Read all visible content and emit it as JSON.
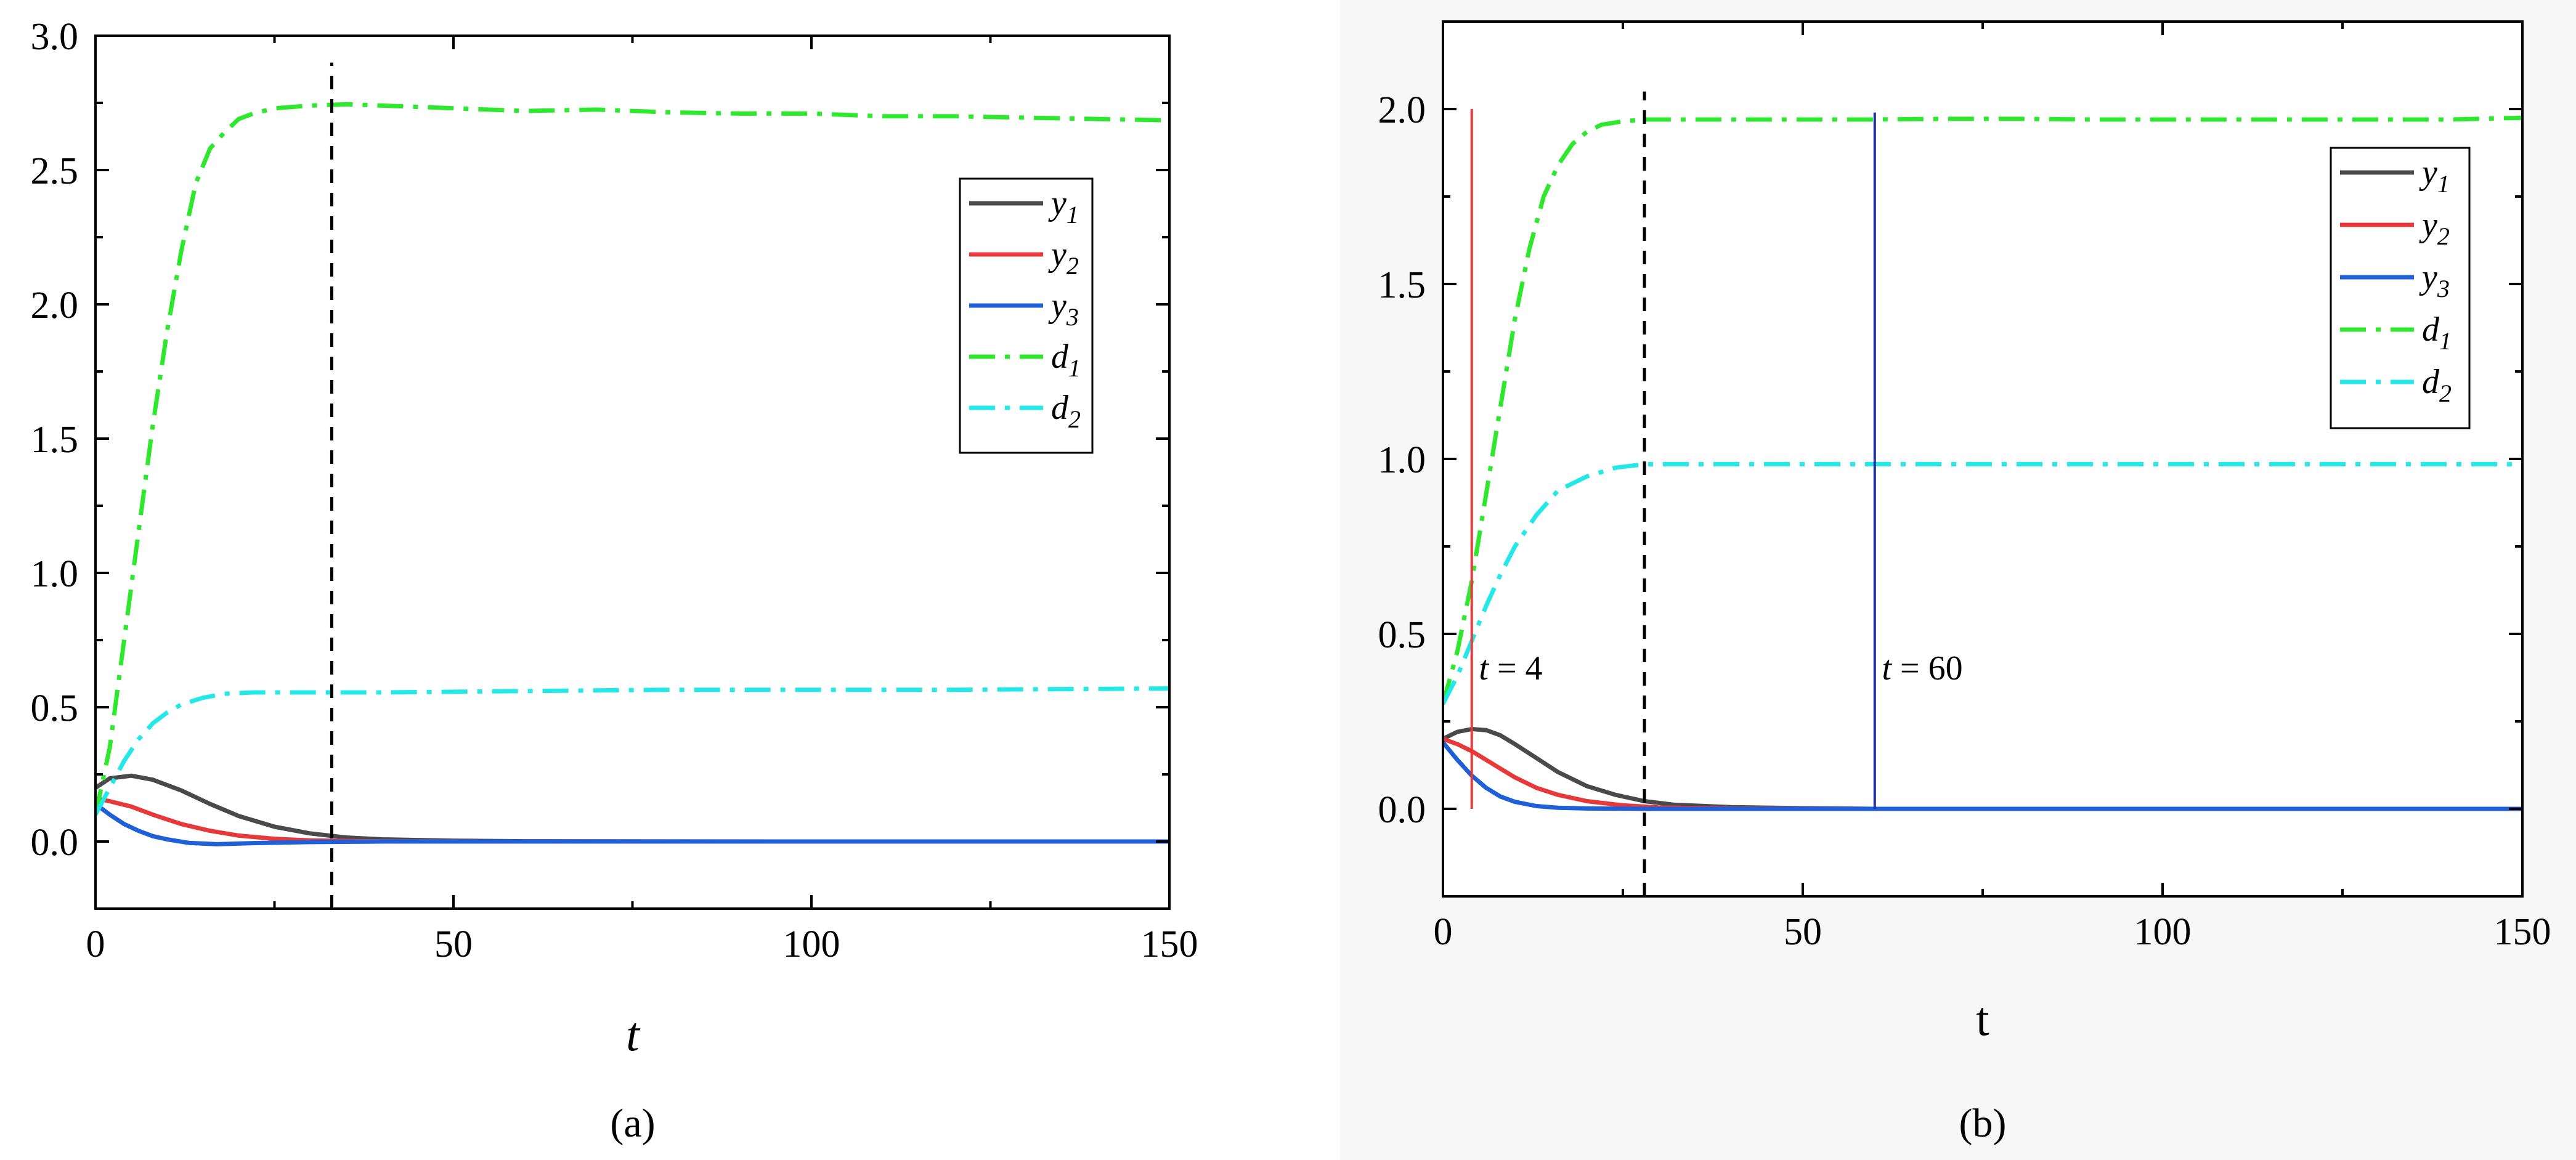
{
  "chart_data": [
    {
      "type": "line",
      "panel_label": "(a)",
      "xlabel": "t",
      "ylabel": "",
      "xlim": [
        0,
        150
      ],
      "ylim": [
        -0.25,
        3.0
      ],
      "xticks": [
        0,
        50,
        100,
        150
      ],
      "xtick_labels": [
        "0",
        "50",
        "100",
        "150"
      ],
      "yticks": [
        0.0,
        0.5,
        1.0,
        1.5,
        2.0,
        2.5,
        3.0
      ],
      "ytick_labels": [
        "0.0",
        "0.5",
        "1.0",
        "1.5",
        "2.0",
        "2.5",
        "3.0"
      ],
      "legend": [
        "y1",
        "y2",
        "y3",
        "d1",
        "d2"
      ],
      "legend_position": "top-right",
      "series": [
        {
          "name": "y1",
          "color": "#4a4a4a",
          "style": "solid",
          "x": [
            0,
            2,
            5,
            8,
            12,
            16,
            20,
            25,
            30,
            35,
            40,
            50,
            60,
            100,
            150
          ],
          "y": [
            0.2,
            0.235,
            0.245,
            0.23,
            0.19,
            0.14,
            0.095,
            0.055,
            0.03,
            0.015,
            0.008,
            0.003,
            0.001,
            0.0,
            0.0
          ]
        },
        {
          "name": "y2",
          "color": "#e8393a",
          "style": "solid",
          "x": [
            0,
            2,
            5,
            8,
            12,
            16,
            20,
            25,
            30,
            40,
            60,
            100,
            150
          ],
          "y": [
            0.16,
            0.15,
            0.13,
            0.1,
            0.065,
            0.04,
            0.022,
            0.01,
            0.004,
            0.001,
            0.0,
            0.0,
            0.0
          ]
        },
        {
          "name": "y3",
          "color": "#1f5fd8",
          "style": "solid",
          "x": [
            0,
            2,
            4,
            6,
            8,
            10,
            13,
            17,
            22,
            30,
            40,
            60,
            100,
            150
          ],
          "y": [
            0.14,
            0.1,
            0.065,
            0.04,
            0.02,
            0.008,
            -0.005,
            -0.01,
            -0.006,
            -0.002,
            0.0,
            0.0,
            0.0,
            0.0
          ]
        },
        {
          "name": "d1",
          "color": "#2ee82e",
          "style": "dashdot",
          "x": [
            0,
            2,
            4,
            6,
            8,
            10,
            12,
            14,
            16,
            18,
            20,
            22,
            25,
            30,
            35,
            40,
            50,
            60,
            70,
            80,
            90,
            100,
            110,
            120,
            130,
            140,
            150
          ],
          "y": [
            0.1,
            0.35,
            0.75,
            1.15,
            1.55,
            1.9,
            2.2,
            2.45,
            2.58,
            2.64,
            2.69,
            2.71,
            2.73,
            2.74,
            2.745,
            2.74,
            2.73,
            2.72,
            2.725,
            2.715,
            2.71,
            2.71,
            2.7,
            2.7,
            2.695,
            2.69,
            2.685
          ]
        },
        {
          "name": "d2",
          "color": "#22e8e8",
          "style": "dashdot",
          "x": [
            0,
            2,
            4,
            6,
            8,
            10,
            12,
            15,
            18,
            22,
            26,
            30,
            40,
            60,
            80,
            100,
            120,
            150
          ],
          "y": [
            0.1,
            0.2,
            0.3,
            0.38,
            0.44,
            0.48,
            0.51,
            0.535,
            0.55,
            0.555,
            0.555,
            0.555,
            0.555,
            0.56,
            0.565,
            0.565,
            0.565,
            0.57
          ]
        }
      ],
      "vlines": [
        {
          "x": 33,
          "color": "#000000",
          "style": "dashed",
          "y_from": -0.25,
          "y_to": 2.9
        }
      ],
      "annotations": []
    },
    {
      "type": "line",
      "panel_label": "(b)",
      "xlabel": "t",
      "ylabel": "",
      "xlim": [
        0,
        150
      ],
      "ylim": [
        -0.25,
        2.25
      ],
      "xticks": [
        0,
        50,
        100,
        150
      ],
      "xtick_labels": [
        "0",
        "50",
        "100",
        "150"
      ],
      "yticks": [
        0.0,
        0.5,
        1.0,
        1.5,
        2.0
      ],
      "ytick_labels": [
        "0.0",
        "0.5",
        "1.0",
        "1.5",
        "2.0"
      ],
      "legend": [
        "y2",
        "y3",
        "d1",
        "d2",
        "y1"
      ],
      "legend_position": "top-right",
      "series": [
        {
          "name": "y1",
          "color": "#4a4a4a",
          "style": "solid",
          "x": [
            0,
            2,
            4,
            6,
            8,
            10,
            13,
            16,
            20,
            24,
            28,
            32,
            40,
            50,
            60,
            100,
            150
          ],
          "y": [
            0.2,
            0.22,
            0.228,
            0.225,
            0.21,
            0.185,
            0.145,
            0.105,
            0.065,
            0.04,
            0.022,
            0.012,
            0.005,
            0.002,
            0.0,
            0.0,
            0.0
          ]
        },
        {
          "name": "y2",
          "color": "#e8393a",
          "style": "solid",
          "x": [
            0,
            2,
            4,
            6,
            8,
            10,
            13,
            16,
            20,
            25,
            30,
            40,
            60,
            100,
            150
          ],
          "y": [
            0.2,
            0.185,
            0.165,
            0.14,
            0.115,
            0.09,
            0.06,
            0.04,
            0.022,
            0.01,
            0.004,
            0.001,
            0.0,
            0.0,
            0.0
          ]
        },
        {
          "name": "y3",
          "color": "#1f5fd8",
          "style": "solid",
          "x": [
            0,
            2,
            4,
            6,
            8,
            10,
            13,
            16,
            20,
            30,
            40,
            60,
            100,
            150
          ],
          "y": [
            0.19,
            0.14,
            0.095,
            0.06,
            0.035,
            0.02,
            0.008,
            0.003,
            0.001,
            0.0,
            0.0,
            0.0,
            0.0,
            0.0
          ]
        },
        {
          "name": "d1",
          "color": "#2ee82e",
          "style": "dashdot",
          "x": [
            0,
            2,
            4,
            6,
            8,
            10,
            12,
            14,
            16,
            18,
            20,
            22,
            25,
            28,
            35,
            40,
            50,
            60,
            70,
            80,
            90,
            100,
            110,
            120,
            130,
            140,
            150
          ],
          "y": [
            0.3,
            0.45,
            0.65,
            0.9,
            1.15,
            1.4,
            1.6,
            1.75,
            1.84,
            1.9,
            1.935,
            1.955,
            1.965,
            1.97,
            1.97,
            1.97,
            1.97,
            1.97,
            1.972,
            1.972,
            1.97,
            1.97,
            1.97,
            1.97,
            1.97,
            1.97,
            1.975
          ]
        },
        {
          "name": "d2",
          "color": "#22e8e8",
          "style": "dashdot",
          "x": [
            0,
            2,
            4,
            6,
            8,
            10,
            13,
            16,
            20,
            24,
            28,
            35,
            40,
            50,
            60,
            80,
            100,
            120,
            150
          ],
          "y": [
            0.3,
            0.38,
            0.48,
            0.58,
            0.67,
            0.75,
            0.84,
            0.91,
            0.95,
            0.975,
            0.985,
            0.985,
            0.985,
            0.985,
            0.985,
            0.985,
            0.985,
            0.985,
            0.985
          ]
        }
      ],
      "vlines": [
        {
          "x": 4,
          "color": "#e8393a",
          "style": "solid",
          "y_from": 0.0,
          "y_to": 2.0
        },
        {
          "x": 28,
          "color": "#000000",
          "style": "dashed",
          "y_from": -0.25,
          "y_to": 2.05
        },
        {
          "x": 60,
          "color": "#1f2fa8",
          "style": "solid",
          "y_from": 0.0,
          "y_to": 1.99
        }
      ],
      "annotations": [
        {
          "italic": "t",
          "rest": " = 4",
          "x": 5,
          "y": 0.37
        },
        {
          "italic": "t",
          "rest": " = 60",
          "x": 61,
          "y": 0.37
        }
      ]
    }
  ]
}
